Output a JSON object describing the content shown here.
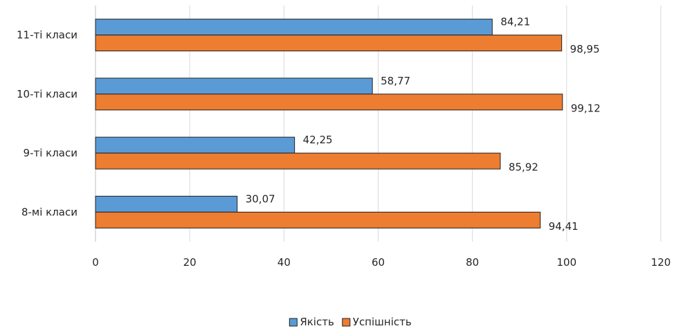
{
  "chart_data": {
    "type": "bar",
    "orientation": "horizontal",
    "categories": [
      "8-мі класи",
      "9-ті класи",
      "10-ті класи",
      "11-ті класи"
    ],
    "series": [
      {
        "name": "Якість",
        "color": "#5b9bd5",
        "values": [
          30.07,
          42.25,
          58.77,
          84.21
        ],
        "labels": [
          "30,07",
          "42,25",
          "58,77",
          "84,21"
        ]
      },
      {
        "name": "Успішність",
        "color": "#ed7d31",
        "values": [
          94.41,
          85.92,
          99.12,
          98.95
        ],
        "labels": [
          "94,41",
          "85,92",
          "99,12",
          "98,95"
        ]
      }
    ],
    "xlim": [
      0,
      120
    ],
    "xticks": [
      "0",
      "20",
      "40",
      "60",
      "80",
      "100",
      "120"
    ],
    "grid": true,
    "legend_position": "bottom",
    "title": "",
    "xlabel": "",
    "ylabel": ""
  }
}
